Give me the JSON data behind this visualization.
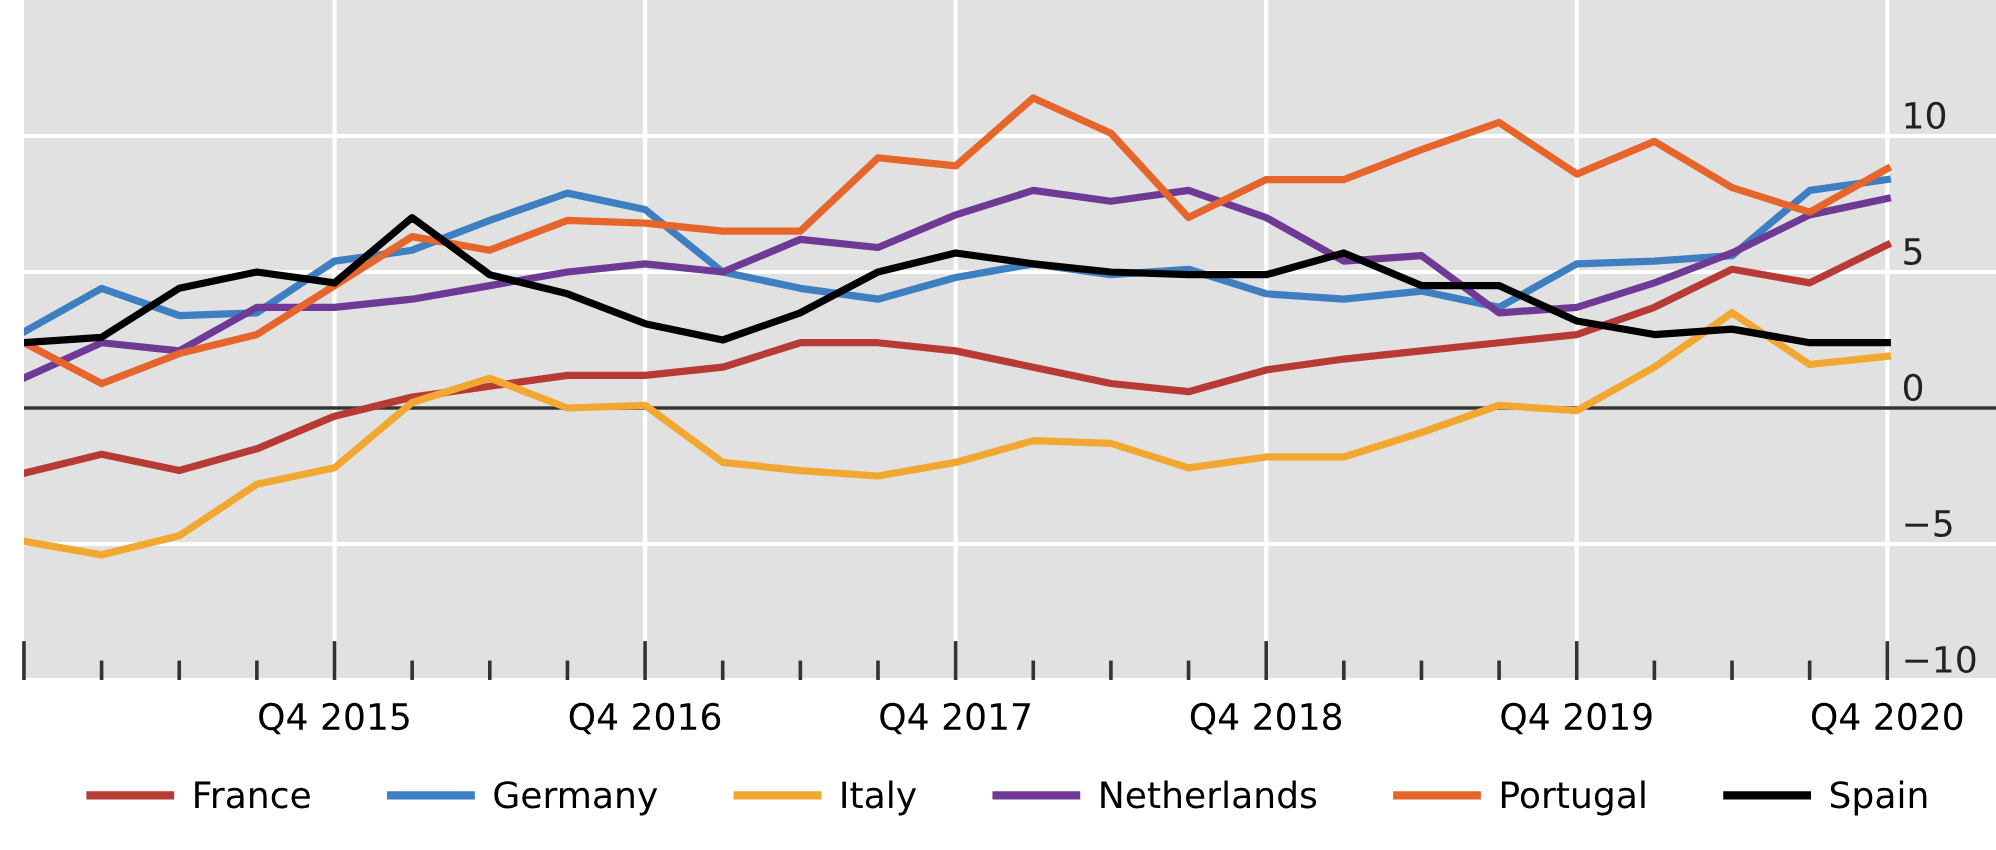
{
  "chart_data": {
    "type": "line",
    "categories": [
      null,
      null,
      null,
      null,
      "Q4 2015",
      null,
      null,
      null,
      "Q4 2016",
      null,
      null,
      null,
      "Q4 2017",
      null,
      null,
      null,
      "Q4 2018",
      null,
      null,
      null,
      "Q4 2019",
      null,
      null,
      null,
      "Q4 2020"
    ],
    "series": [
      {
        "name": "France",
        "color": "#b83a34",
        "values": [
          -2.4,
          -1.7,
          -2.3,
          -1.5,
          -0.3,
          0.4,
          0.8,
          1.2,
          1.2,
          1.5,
          2.4,
          2.4,
          2.1,
          1.5,
          0.9,
          0.6,
          1.4,
          1.8,
          2.1,
          2.4,
          2.7,
          3.7,
          5.1,
          4.6,
          6.0
        ]
      },
      {
        "name": "Germany",
        "color": "#3d7fc1",
        "values": [
          2.8,
          4.4,
          3.4,
          3.5,
          5.4,
          5.8,
          6.9,
          7.9,
          7.3,
          5.0,
          4.4,
          4.0,
          4.8,
          5.3,
          4.9,
          5.1,
          4.2,
          4.0,
          4.3,
          3.7,
          5.3,
          5.4,
          5.6,
          8.0,
          8.4
        ]
      },
      {
        "name": "Italy",
        "color": "#f2a830",
        "values": [
          -4.9,
          -5.4,
          -4.7,
          -2.8,
          -2.2,
          0.2,
          1.1,
          0.0,
          0.1,
          -2.0,
          -2.3,
          -2.5,
          -2.0,
          -1.2,
          -1.3,
          -2.2,
          -1.8,
          -1.8,
          -0.9,
          0.1,
          -0.1,
          1.5,
          3.5,
          1.6,
          1.9
        ]
      },
      {
        "name": "Netherlands",
        "color": "#6e3a96",
        "values": [
          1.1,
          2.4,
          2.1,
          3.7,
          3.7,
          4.0,
          4.5,
          5.0,
          5.3,
          5.0,
          6.2,
          5.9,
          7.1,
          8.0,
          7.6,
          8.0,
          7.0,
          5.4,
          5.6,
          3.5,
          3.7,
          4.6,
          5.7,
          7.1,
          7.7
        ]
      },
      {
        "name": "Portugal",
        "color": "#e5652b",
        "values": [
          2.4,
          0.9,
          2.0,
          2.7,
          4.5,
          6.3,
          5.8,
          6.9,
          6.8,
          6.5,
          6.5,
          9.2,
          8.9,
          11.4,
          10.1,
          7.0,
          8.4,
          8.4,
          9.5,
          10.5,
          8.6,
          9.8,
          8.1,
          7.2,
          8.8
        ]
      },
      {
        "name": "Spain",
        "color": "#000000",
        "values": [
          2.4,
          2.6,
          4.4,
          5.0,
          4.6,
          7.0,
          4.9,
          4.2,
          3.1,
          2.5,
          3.5,
          5.0,
          5.7,
          5.3,
          5.0,
          4.9,
          4.9,
          5.7,
          4.5,
          4.5,
          3.2,
          2.7,
          2.9,
          2.4,
          2.4
        ]
      }
    ],
    "ylim": [
      -10,
      15
    ],
    "yticks": [
      10,
      5,
      0,
      {
        "value": -5,
        "label": "−5"
      },
      {
        "value": -10,
        "label": "−10"
      }
    ],
    "grid": true,
    "legend": "bottom",
    "marker": "none",
    "line_style": "solid"
  }
}
